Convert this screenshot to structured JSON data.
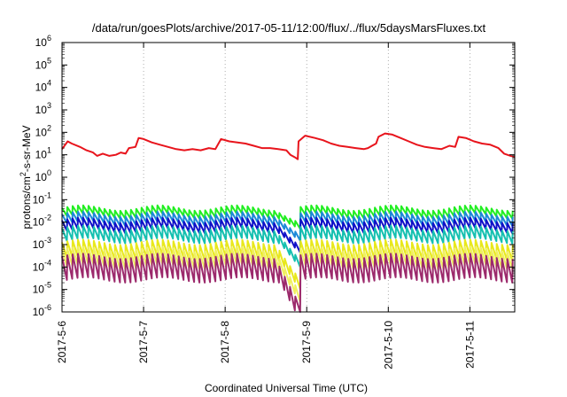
{
  "chart_data": {
    "type": "line",
    "title": "/data/run/goesPlots/archive/2017-05-11/12:00/flux/../flux/5daysMarsFluxes.txt",
    "xlabel": "Coordinated Universal Time (UTC)",
    "ylabel": {
      "base": "protons/cm",
      "sup": "2",
      "rest": "-s-sr-MeV"
    },
    "yscale": "log",
    "ylim": [
      1e-06,
      1000000.0
    ],
    "xlim": [
      0,
      5.55
    ],
    "x_units": "days since 2017-5-6 00:00 UTC",
    "grid": "vertical dotted at day ticks",
    "xticks": [
      {
        "x": 0,
        "label": "2017-5-6"
      },
      {
        "x": 1,
        "label": "2017-5-7"
      },
      {
        "x": 2,
        "label": "2017-5-8"
      },
      {
        "x": 3,
        "label": "2017-5-9"
      },
      {
        "x": 4,
        "label": "2017-5-10"
      },
      {
        "x": 5,
        "label": "2017-5-11"
      }
    ],
    "yticks": [
      {
        "exp": -6,
        "label": "10",
        "sup": "-6"
      },
      {
        "exp": -5,
        "label": "10",
        "sup": "-5"
      },
      {
        "exp": -4,
        "label": "10",
        "sup": "-4"
      },
      {
        "exp": -3,
        "label": "10",
        "sup": "-3"
      },
      {
        "exp": -2,
        "label": "10",
        "sup": "-2"
      },
      {
        "exp": -1,
        "label": "10",
        "sup": "-1"
      },
      {
        "exp": 0,
        "label": "10",
        "sup": "0"
      },
      {
        "exp": 1,
        "label": "10",
        "sup": "1"
      },
      {
        "exp": 2,
        "label": "10",
        "sup": "2"
      },
      {
        "exp": 3,
        "label": "10",
        "sup": "3"
      },
      {
        "exp": 4,
        "label": "10",
        "sup": "4"
      },
      {
        "exp": 5,
        "label": "10",
        "sup": "5"
      },
      {
        "exp": 6,
        "label": "10",
        "sup": "6"
      }
    ],
    "series": [
      {
        "color": "#e8141c",
        "kind": "spike",
        "period": 0.94,
        "offset": 0.0,
        "peakLog": 1.6,
        "troughLog": 1.05,
        "nsub": 6,
        "fixed": [
          [
            0.0,
            1.25
          ],
          [
            0.07,
            1.6
          ],
          [
            0.12,
            1.5
          ],
          [
            0.22,
            1.35
          ],
          [
            0.3,
            1.2
          ],
          [
            0.38,
            1.1
          ],
          [
            0.43,
            0.95
          ],
          [
            0.5,
            1.05
          ],
          [
            0.58,
            0.95
          ],
          [
            0.66,
            1.0
          ],
          [
            0.72,
            1.1
          ],
          [
            0.78,
            1.05
          ],
          [
            0.82,
            1.3
          ],
          [
            0.9,
            1.35
          ],
          [
            0.94,
            1.75
          ],
          [
            1.0,
            1.7
          ],
          [
            1.1,
            1.55
          ],
          [
            1.2,
            1.45
          ],
          [
            1.3,
            1.35
          ],
          [
            1.4,
            1.25
          ],
          [
            1.5,
            1.2
          ],
          [
            1.6,
            1.25
          ],
          [
            1.7,
            1.2
          ],
          [
            1.8,
            1.3
          ],
          [
            1.88,
            1.25
          ],
          [
            1.95,
            1.7
          ],
          [
            2.05,
            1.6
          ],
          [
            2.15,
            1.55
          ],
          [
            2.25,
            1.5
          ],
          [
            2.35,
            1.4
          ],
          [
            2.45,
            1.3
          ],
          [
            2.55,
            1.3
          ],
          [
            2.65,
            1.25
          ],
          [
            2.75,
            1.2
          ],
          [
            2.8,
            1.0
          ],
          [
            2.85,
            0.9
          ],
          [
            2.89,
            0.8
          ],
          [
            2.9,
            1.6
          ],
          [
            2.98,
            1.85
          ],
          [
            3.1,
            1.75
          ],
          [
            3.2,
            1.65
          ],
          [
            3.3,
            1.5
          ],
          [
            3.4,
            1.4
          ],
          [
            3.5,
            1.35
          ],
          [
            3.6,
            1.3
          ],
          [
            3.7,
            1.25
          ],
          [
            3.75,
            1.3
          ],
          [
            3.8,
            1.4
          ],
          [
            3.85,
            1.5
          ],
          [
            3.88,
            1.8
          ],
          [
            3.96,
            1.95
          ],
          [
            4.05,
            1.9
          ],
          [
            4.15,
            1.75
          ],
          [
            4.25,
            1.6
          ],
          [
            4.35,
            1.45
          ],
          [
            4.45,
            1.35
          ],
          [
            4.55,
            1.3
          ],
          [
            4.65,
            1.25
          ],
          [
            4.75,
            1.4
          ],
          [
            4.82,
            1.35
          ],
          [
            4.86,
            1.8
          ],
          [
            4.95,
            1.75
          ],
          [
            5.05,
            1.6
          ],
          [
            5.15,
            1.5
          ],
          [
            5.25,
            1.45
          ],
          [
            5.35,
            1.3
          ],
          [
            5.42,
            1.05
          ],
          [
            5.5,
            0.95
          ],
          [
            5.55,
            0.9
          ]
        ]
      },
      {
        "color": "#22ee22",
        "kind": "saw",
        "base": -1.55,
        "amp": 0.35
      },
      {
        "color": "#1c8ad8",
        "kind": "saw",
        "base": -1.85,
        "amp": 0.4
      },
      {
        "color": "#1010c8",
        "kind": "saw",
        "base": -2.15,
        "amp": 0.45
      },
      {
        "color": "#15c0b0",
        "kind": "saw",
        "base": -2.55,
        "amp": 0.55
      },
      {
        "color": "#e8e81c",
        "kind": "saw",
        "base": -3.25,
        "amp": 0.7
      },
      {
        "color": "#f0f060",
        "kind": "saw",
        "base": -3.6,
        "amp": 0.75
      },
      {
        "color": "#9c2a6c",
        "kind": "saw",
        "base": -4.05,
        "amp": 1.05
      }
    ],
    "dip": {
      "start": 2.62,
      "bottom": 2.88,
      "recover": 2.92
    }
  }
}
